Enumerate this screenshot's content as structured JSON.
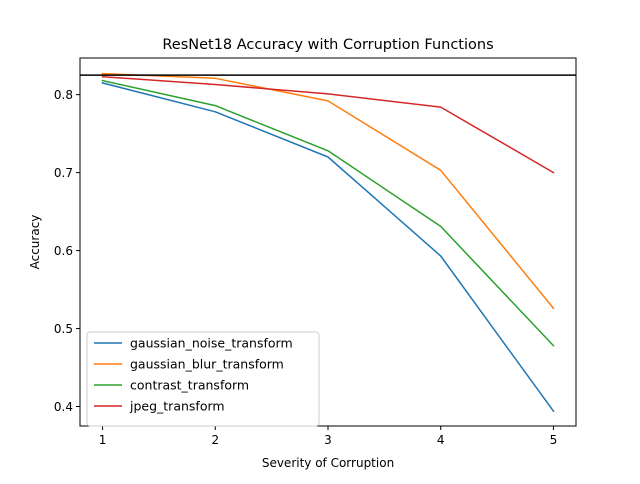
{
  "chart_data": {
    "type": "line",
    "title": "ResNet18 Accuracy with Corruption Functions",
    "xlabel": "Severity of Corruption",
    "ylabel": "Accuracy",
    "x": [
      1,
      2,
      3,
      4,
      5
    ],
    "xlim": [
      0.8,
      5.2
    ],
    "ylim": [
      0.375,
      0.847
    ],
    "xticks": [
      1,
      2,
      3,
      4,
      5
    ],
    "yticks": [
      0.4,
      0.5,
      0.6,
      0.7,
      0.8
    ],
    "ytick_labels": [
      "0.4",
      "0.5",
      "0.6",
      "0.7",
      "0.8"
    ],
    "xtick_labels": [
      "1",
      "2",
      "3",
      "4",
      "5"
    ],
    "grid": false,
    "legend_position": "lower-left",
    "baseline": {
      "y": 0.825,
      "color": "#000000"
    },
    "series": [
      {
        "name": "gaussian_noise_transform",
        "color": "#1f77b4",
        "values": [
          0.815,
          0.778,
          0.72,
          0.593,
          0.394
        ]
      },
      {
        "name": "gaussian_blur_transform",
        "color": "#ff7f0e",
        "values": [
          0.827,
          0.821,
          0.792,
          0.703,
          0.526
        ]
      },
      {
        "name": "contrast_transform",
        "color": "#2ca02c",
        "values": [
          0.818,
          0.786,
          0.728,
          0.631,
          0.478
        ]
      },
      {
        "name": "jpeg_transform",
        "color": "#d62728",
        "values": [
          0.823,
          0.813,
          0.801,
          0.784,
          0.7
        ]
      }
    ]
  }
}
